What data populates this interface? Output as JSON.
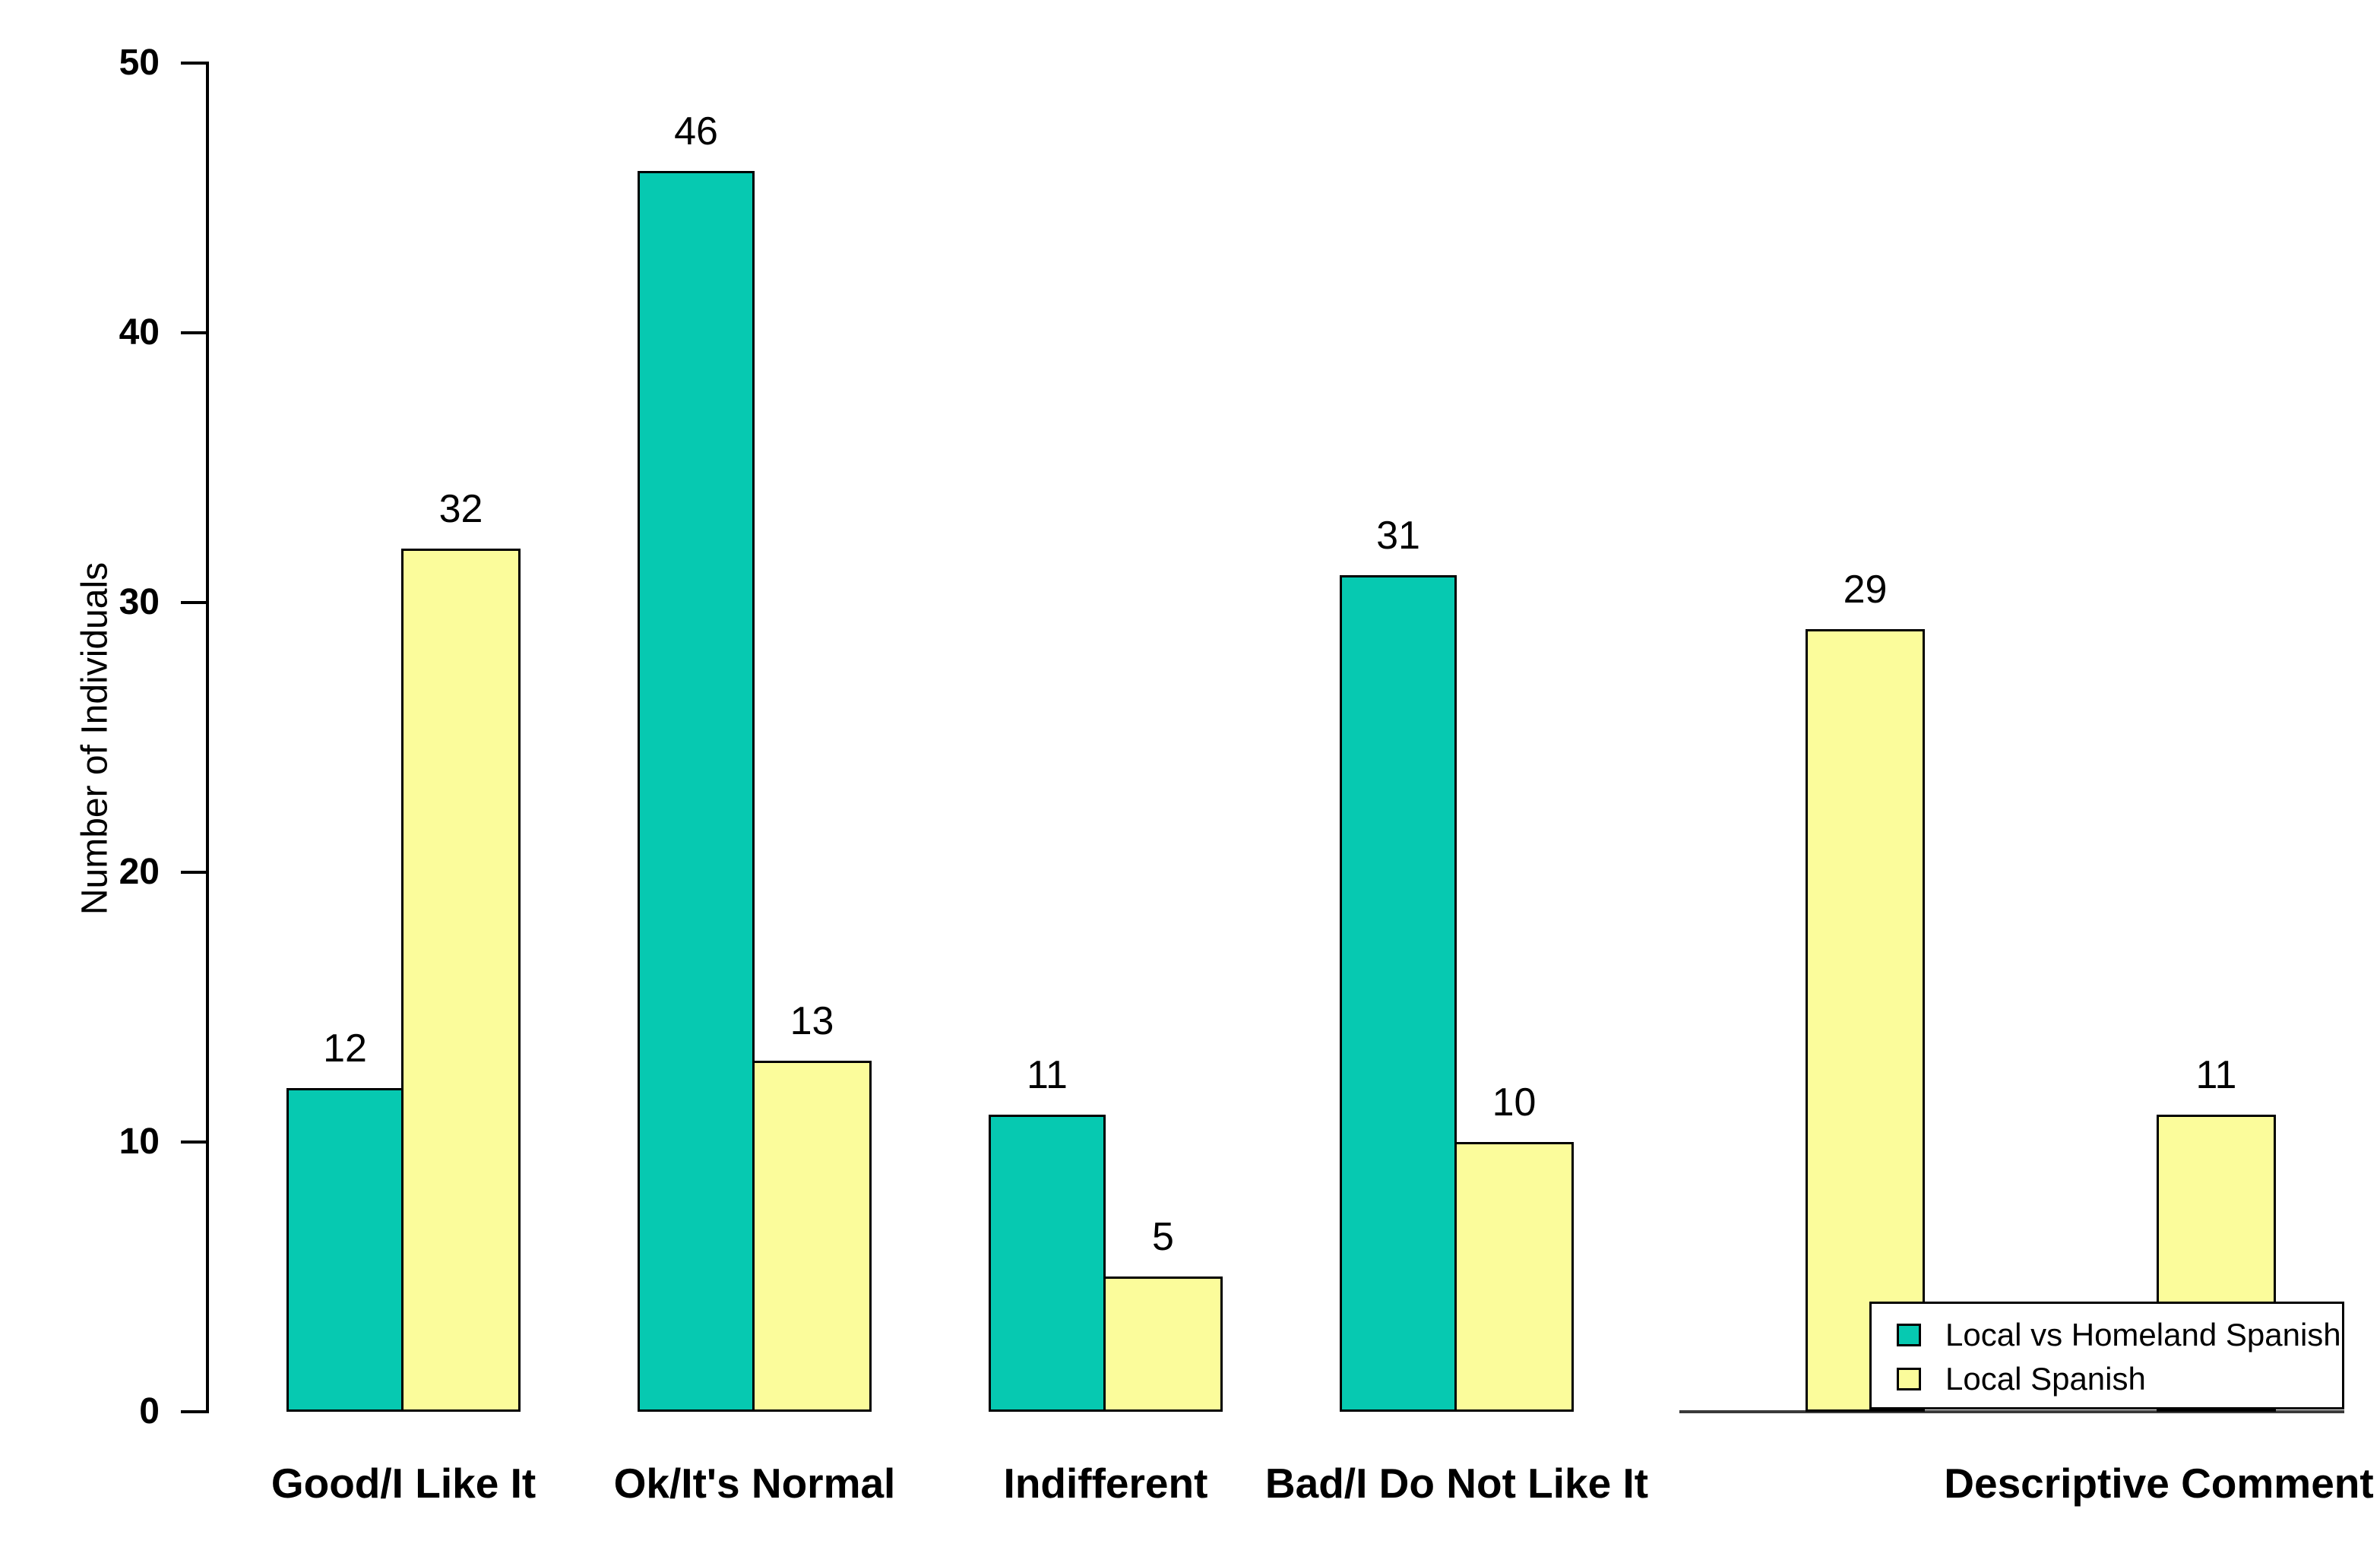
{
  "chart_data": {
    "type": "bar",
    "title": "",
    "xlabel": "",
    "ylabel": "Number of Individuals",
    "ylim": [
      0,
      50
    ],
    "yticks": [
      0,
      10,
      20,
      30,
      40,
      50
    ],
    "grid": false,
    "bar_value_labels": true,
    "categories": [
      "Good/I Like It",
      "Ok/It's Normal",
      "Indifferent",
      "Bad/I Do Not Like It",
      "",
      "Descriptive Comment"
    ],
    "series": [
      {
        "name": "Local vs Homeland Spanish",
        "color": "#06C9B1",
        "values": [
          12,
          46,
          11,
          31,
          null,
          null
        ]
      },
      {
        "name": "Local Spanish",
        "color": "#FBFC9B",
        "values": [
          32,
          13,
          5,
          10,
          29,
          11
        ]
      }
    ],
    "legend": {
      "position": "inside-bottom-right",
      "entries": [
        {
          "label": "Local vs Homeland Spanish",
          "color": "#06C9B1"
        },
        {
          "label": "Local Spanish",
          "color": "#FBFC9B"
        }
      ]
    },
    "colors": {
      "bar_border": "#000000",
      "axis": "#000000",
      "text": "#000000",
      "background": "#FFFFFF"
    },
    "baseline_under_last_two_slots": true
  }
}
